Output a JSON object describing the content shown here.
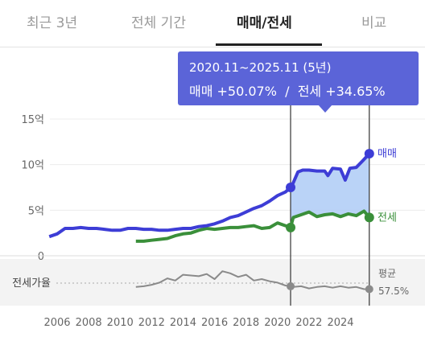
{
  "tabs": [
    {
      "label": "최근 3년",
      "active": false
    },
    {
      "label": "전체 기간",
      "active": false
    },
    {
      "label": "매매/전세",
      "active": true
    },
    {
      "label": "비교",
      "active": false
    }
  ],
  "tooltip": {
    "period": "2020.11~2025.11 (5년)",
    "sale_label": "매매 +50.07%",
    "separator": "/",
    "jeonse_label": "전세 +34.65%"
  },
  "colors": {
    "sale": "#3d3dd6",
    "jeonse": "#3a8f3a",
    "ratio": "#8a8a8a",
    "highlight": "#a9c8f5",
    "tooltip_bg": "#5b64d8"
  },
  "chart_data": {
    "type": "line",
    "ylim": [
      0,
      15
    ],
    "y_ticks": [
      "15억",
      "10억",
      "5억",
      "0"
    ],
    "x_ticks": [
      "2006",
      "2008",
      "2010",
      "2012",
      "2014",
      "2016",
      "2018",
      "2020",
      "2022",
      "2024"
    ],
    "highlight_range": [
      2020.83,
      2025.83
    ],
    "series": [
      {
        "name": "매매",
        "x": [
          2005.5,
          2006.0,
          2006.5,
          2007.0,
          2007.5,
          2008.0,
          2008.5,
          2009.0,
          2009.5,
          2010.0,
          2010.5,
          2011.0,
          2011.5,
          2012.0,
          2012.5,
          2013.0,
          2013.5,
          2014.0,
          2014.5,
          2015.0,
          2015.5,
          2016.0,
          2016.5,
          2017.0,
          2017.5,
          2018.0,
          2018.5,
          2019.0,
          2019.5,
          2020.0,
          2020.5,
          2020.83,
          2021.0,
          2021.3,
          2021.6,
          2022.0,
          2022.5,
          2023.0,
          2023.2,
          2023.5,
          2024.0,
          2024.3,
          2024.6,
          2025.0,
          2025.4,
          2025.83
        ],
        "values": [
          2.1,
          2.4,
          3.0,
          3.0,
          3.1,
          3.0,
          3.0,
          2.9,
          2.8,
          2.8,
          3.0,
          3.0,
          2.9,
          2.9,
          2.8,
          2.8,
          2.9,
          3.0,
          3.0,
          3.2,
          3.3,
          3.5,
          3.8,
          4.2,
          4.4,
          4.8,
          5.2,
          5.5,
          6.0,
          6.6,
          7.0,
          7.5,
          8.0,
          9.2,
          9.4,
          9.4,
          9.3,
          9.3,
          8.8,
          9.6,
          9.5,
          8.3,
          9.6,
          9.7,
          10.4,
          11.2
        ]
      },
      {
        "name": "전세",
        "x": [
          2011.0,
          2011.5,
          2012.0,
          2012.5,
          2013.0,
          2013.5,
          2014.0,
          2014.5,
          2015.0,
          2015.5,
          2016.0,
          2016.5,
          2017.0,
          2017.5,
          2018.0,
          2018.5,
          2019.0,
          2019.5,
          2020.0,
          2020.5,
          2020.83,
          2021.0,
          2021.5,
          2022.0,
          2022.5,
          2023.0,
          2023.5,
          2024.0,
          2024.5,
          2025.0,
          2025.5,
          2025.83
        ],
        "values": [
          1.6,
          1.6,
          1.7,
          1.8,
          1.9,
          2.2,
          2.4,
          2.5,
          2.8,
          3.0,
          2.9,
          3.0,
          3.1,
          3.1,
          3.2,
          3.3,
          3.0,
          3.1,
          3.6,
          3.3,
          3.1,
          4.2,
          4.5,
          4.8,
          4.3,
          4.5,
          4.6,
          4.3,
          4.6,
          4.4,
          4.9,
          4.2
        ]
      },
      {
        "name": "전세가율",
        "x": [
          2011.0,
          2011.5,
          2012.0,
          2012.5,
          2013.0,
          2013.5,
          2014.0,
          2014.5,
          2015.0,
          2015.5,
          2016.0,
          2016.5,
          2017.0,
          2017.5,
          2018.0,
          2018.5,
          2019.0,
          2019.5,
          2020.0,
          2020.5,
          2020.83,
          2021.0,
          2021.5,
          2022.0,
          2022.5,
          2023.0,
          2023.5,
          2024.0,
          2024.5,
          2025.0,
          2025.5,
          2025.83
        ],
        "values": [
          56,
          57,
          59,
          62,
          68,
          65,
          73,
          72,
          71,
          74,
          67,
          78,
          75,
          70,
          73,
          65,
          67,
          64,
          62,
          58,
          57,
          56,
          57,
          54,
          56,
          57,
          55,
          57,
          55,
          56,
          53,
          53
        ]
      }
    ],
    "ratio_axis": {
      "ylim": [
        30,
        95
      ],
      "label": "전세가율",
      "avg_label": "평균",
      "avg_value": "57.5%"
    },
    "end_labels": {
      "sale": "매매",
      "jeonse": "전세"
    }
  }
}
